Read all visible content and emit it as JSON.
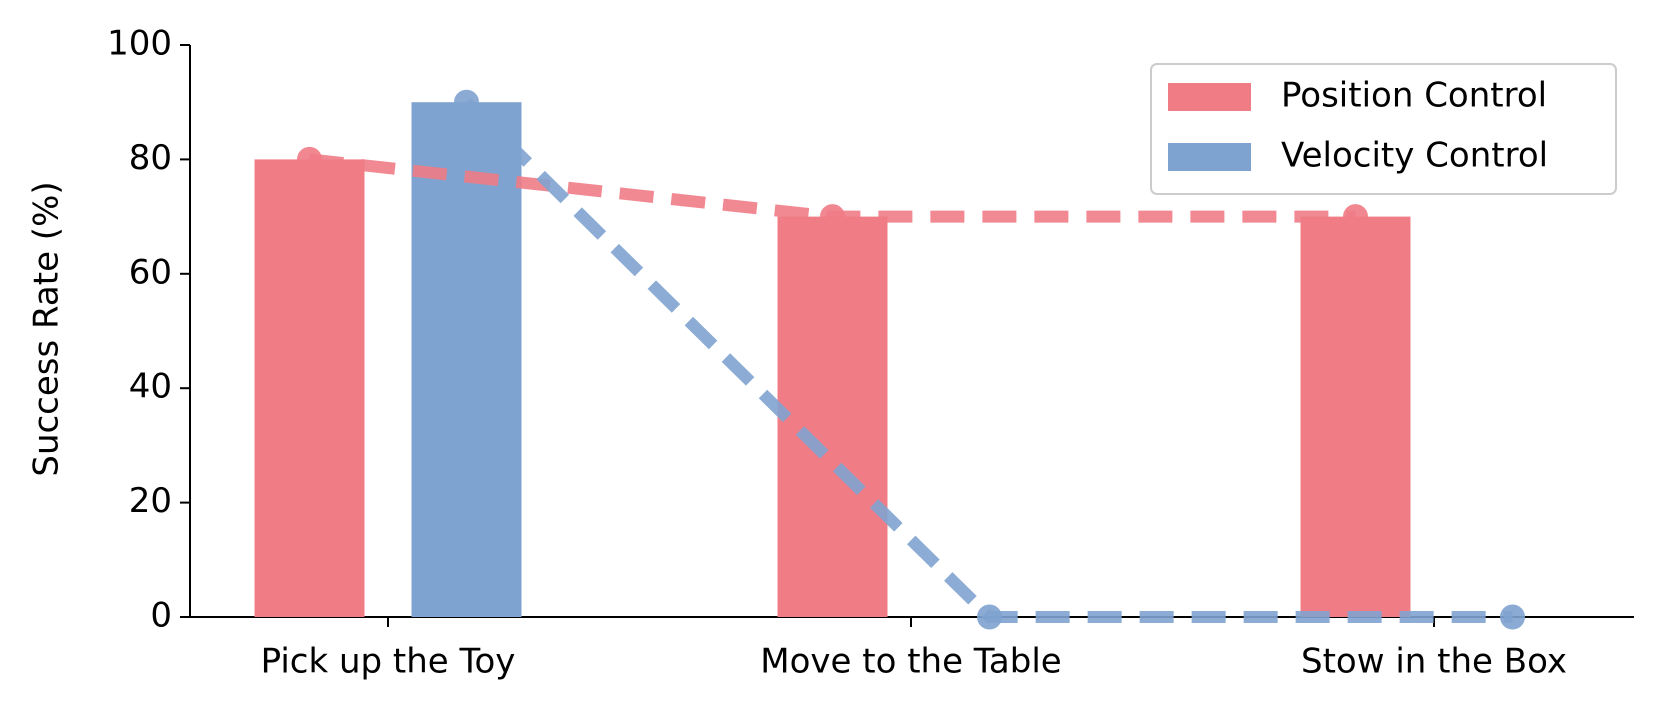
{
  "chart_data": {
    "type": "bar",
    "ylabel": "Success Rate (%)",
    "categories": [
      "Pick up the Toy",
      "Move to the Table",
      "Stow in the Box"
    ],
    "series": [
      {
        "name": "Position Control",
        "color": "#f07c86",
        "values": [
          80,
          70,
          70
        ]
      },
      {
        "name": "Velocity Control",
        "color": "#7fa3d0",
        "values": [
          90,
          0,
          0
        ]
      }
    ],
    "ylim": [
      0,
      100
    ],
    "yticks": [
      0,
      20,
      40,
      60,
      80,
      100
    ],
    "overlay_line": true,
    "legend": "upper right"
  }
}
